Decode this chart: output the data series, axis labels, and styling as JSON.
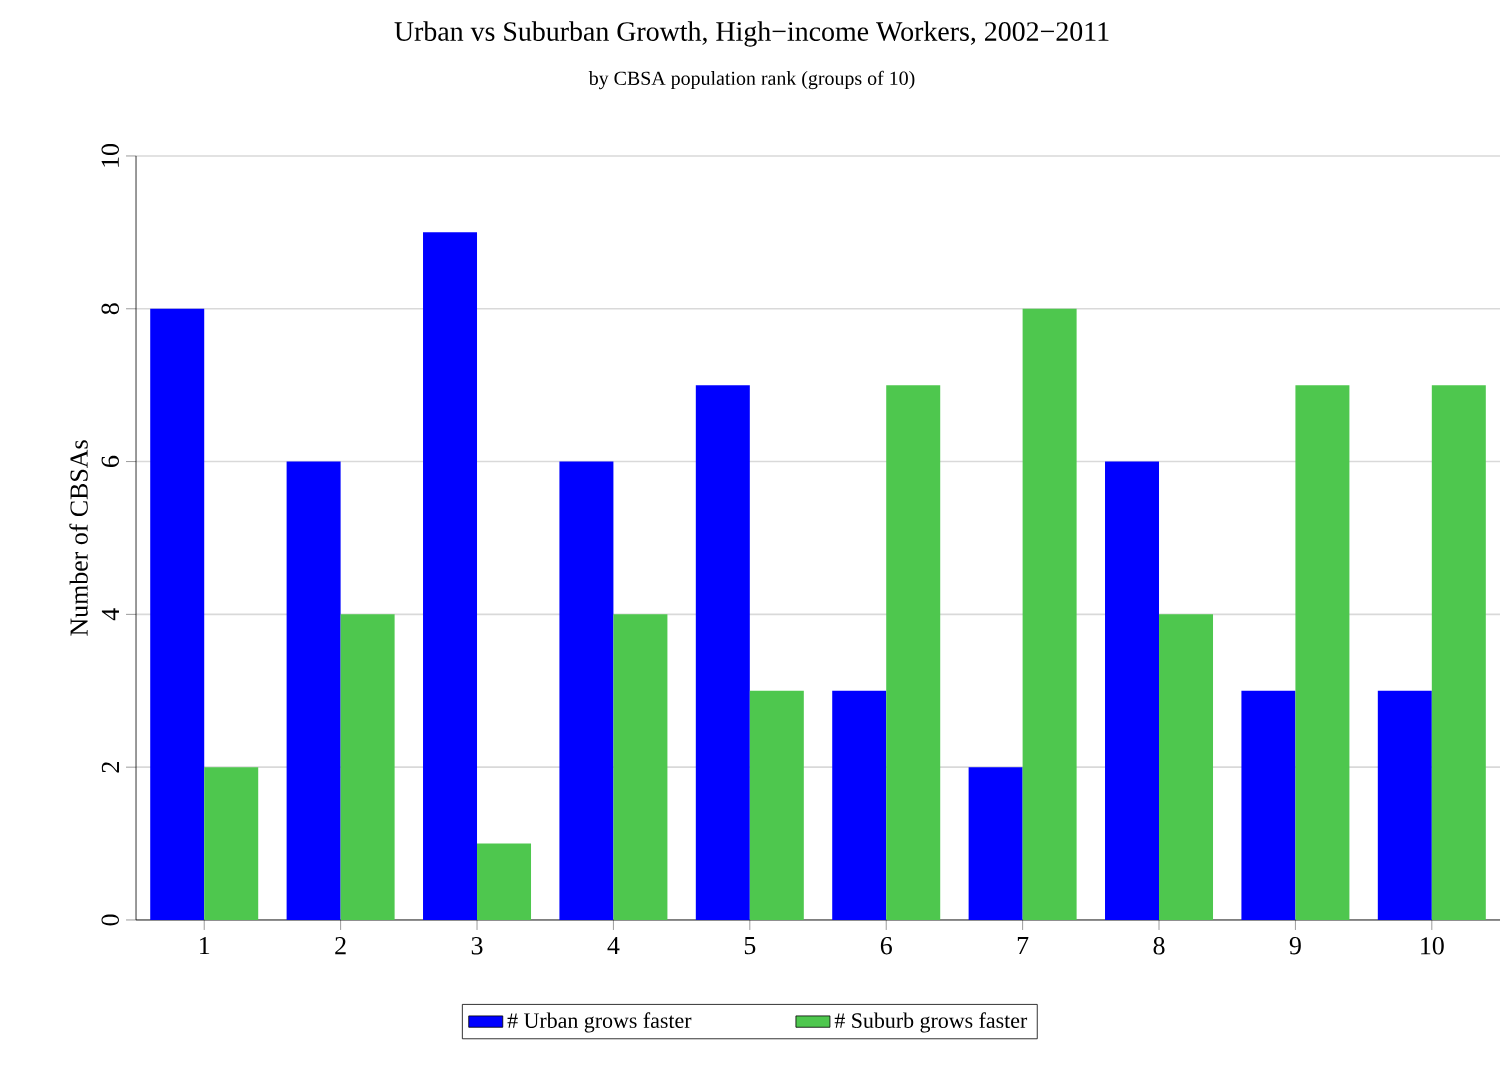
{
  "chart_data": {
    "type": "bar",
    "title": "Urban vs Suburban Growth, High−income Workers, 2002−2011",
    "subtitle": "by CBSA population rank (groups of 10)",
    "ylabel": "Number of CBSAs",
    "categories": [
      "1",
      "2",
      "3",
      "4",
      "5",
      "6",
      "7",
      "8",
      "9",
      "10"
    ],
    "series": [
      {
        "name": "# Urban grows faster",
        "color": "#0000ff",
        "values": [
          8,
          6,
          9,
          6,
          7,
          3,
          2,
          6,
          3,
          3
        ]
      },
      {
        "name": "# Suburb grows faster",
        "color": "#4ec74e",
        "values": [
          2,
          4,
          1,
          4,
          3,
          7,
          8,
          4,
          7,
          7
        ]
      }
    ],
    "ylim": [
      0,
      10
    ],
    "yticks": [
      0,
      2,
      4,
      6,
      8,
      10
    ],
    "grid": "y",
    "legend": "bottom"
  }
}
